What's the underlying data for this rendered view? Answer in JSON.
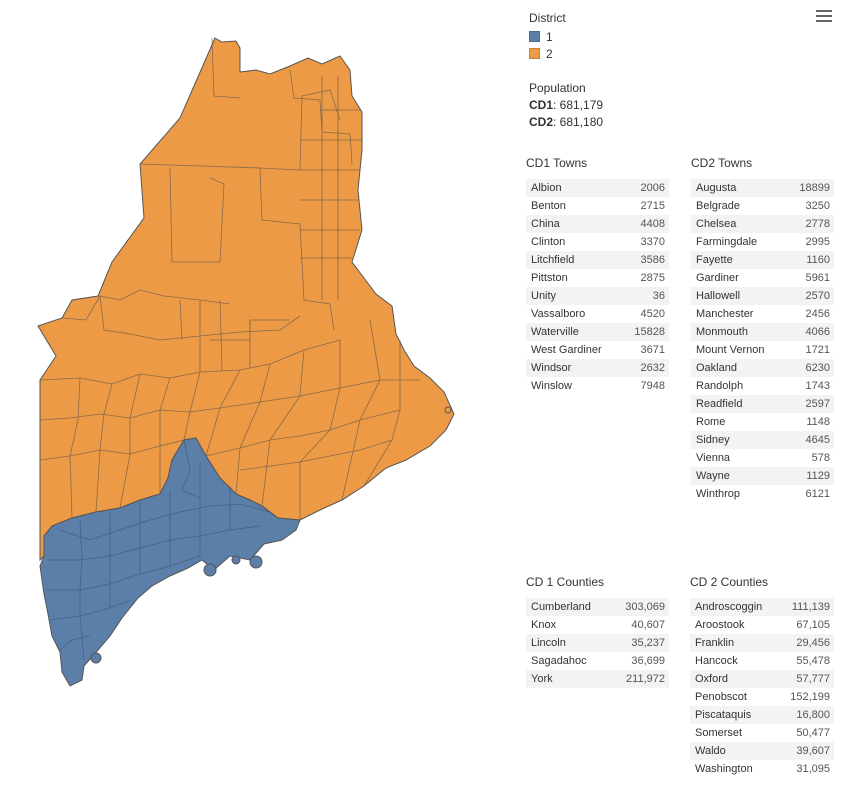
{
  "legend": {
    "title": "District",
    "items": [
      {
        "label": "1",
        "color": "#5b7fa9"
      },
      {
        "label": "2",
        "color": "#ec9a45"
      }
    ]
  },
  "population": {
    "title": "Population",
    "cd1_label": "CD1",
    "cd1_value": ": 681,179",
    "cd2_label": "CD2",
    "cd2_value": ": 681,180"
  },
  "cd1_towns": {
    "title": "CD1 Towns",
    "rows": [
      {
        "name": "Albion",
        "value": "2006"
      },
      {
        "name": "Benton",
        "value": "2715"
      },
      {
        "name": "China",
        "value": "4408"
      },
      {
        "name": "Clinton",
        "value": "3370"
      },
      {
        "name": "Litchfield",
        "value": "3586"
      },
      {
        "name": "Pittston",
        "value": "2875"
      },
      {
        "name": "Unity",
        "value": "36"
      },
      {
        "name": "Vassalboro",
        "value": "4520"
      },
      {
        "name": "Waterville",
        "value": "15828"
      },
      {
        "name": "West Gardiner",
        "value": "3671"
      },
      {
        "name": "Windsor",
        "value": "2632"
      },
      {
        "name": "Winslow",
        "value": "7948"
      }
    ]
  },
  "cd2_towns": {
    "title": "CD2 Towns",
    "rows": [
      {
        "name": "Augusta",
        "value": "18899"
      },
      {
        "name": "Belgrade",
        "value": "3250"
      },
      {
        "name": "Chelsea",
        "value": "2778"
      },
      {
        "name": "Farmingdale",
        "value": "2995"
      },
      {
        "name": "Fayette",
        "value": "1160"
      },
      {
        "name": "Gardiner",
        "value": "5961"
      },
      {
        "name": "Hallowell",
        "value": "2570"
      },
      {
        "name": "Manchester",
        "value": "2456"
      },
      {
        "name": "Monmouth",
        "value": "4066"
      },
      {
        "name": "Mount Vernon",
        "value": "1721"
      },
      {
        "name": "Oakland",
        "value": "6230"
      },
      {
        "name": "Randolph",
        "value": "1743"
      },
      {
        "name": "Readfield",
        "value": "2597"
      },
      {
        "name": "Rome",
        "value": "1148"
      },
      {
        "name": "Sidney",
        "value": "4645"
      },
      {
        "name": "Vienna",
        "value": "578"
      },
      {
        "name": "Wayne",
        "value": "1129"
      },
      {
        "name": "Winthrop",
        "value": "6121"
      }
    ]
  },
  "cd1_counties": {
    "title": "CD 1 Counties",
    "rows": [
      {
        "name": "Cumberland",
        "value": "303,069"
      },
      {
        "name": "Knox",
        "value": "40,607"
      },
      {
        "name": "Lincoln",
        "value": "35,237"
      },
      {
        "name": "Sagadahoc",
        "value": "36,699"
      },
      {
        "name": "York",
        "value": "211,972"
      }
    ]
  },
  "cd2_counties": {
    "title": "CD 2 Counties",
    "rows": [
      {
        "name": "Androscoggin",
        "value": "111,139"
      },
      {
        "name": "Aroostook",
        "value": "67,105"
      },
      {
        "name": "Franklin",
        "value": "29,456"
      },
      {
        "name": "Hancock",
        "value": "55,478"
      },
      {
        "name": "Oxford",
        "value": "57,777"
      },
      {
        "name": "Penobscot",
        "value": "152,199"
      },
      {
        "name": "Piscataquis",
        "value": "16,800"
      },
      {
        "name": "Somerset",
        "value": "50,477"
      },
      {
        "name": "Waldo",
        "value": "39,607"
      },
      {
        "name": "Washington",
        "value": "31,095"
      }
    ]
  },
  "icons": {
    "menu": "menu-icon"
  }
}
